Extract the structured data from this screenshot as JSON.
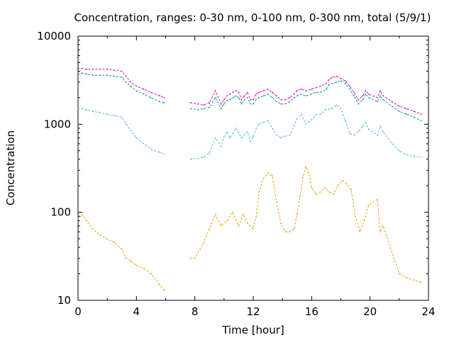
{
  "chart_data": {
    "type": "line",
    "title": "Concentration, ranges: 0-30 nm, 0-100 nm, 0-300 nm, total (5/9/1)",
    "xlabel": "Time [hour]",
    "ylabel": "Concentration",
    "xlim": [
      0,
      24
    ],
    "ylim": [
      10,
      10000
    ],
    "yscale": "log",
    "grid": false,
    "legend": "none",
    "xticks": [
      "0",
      "4",
      "8",
      "12",
      "16",
      "20",
      "24"
    ],
    "yticks": [
      "10",
      "100",
      "1000",
      "10000"
    ],
    "series": [
      {
        "color": "#e69f00",
        "x": [
          0.0,
          0.3,
          0.6,
          1.0,
          1.5,
          2.0,
          2.5,
          3.0,
          3.3,
          3.6,
          4.0,
          4.5,
          5.0,
          5.6,
          5.9,
          7.7,
          8.0,
          8.6,
          9.0,
          9.4,
          9.8,
          10.2,
          10.6,
          11.0,
          11.3,
          11.6,
          11.8,
          12.0,
          12.2,
          12.4,
          12.7,
          13.0,
          13.3,
          13.6,
          13.9,
          14.2,
          14.5,
          14.8,
          15.0,
          15.2,
          15.4,
          15.6,
          15.8,
          16.0,
          16.3,
          16.6,
          16.9,
          17.2,
          17.5,
          17.8,
          18.1,
          18.4,
          18.7,
          19.0,
          19.3,
          19.6,
          19.9,
          20.5,
          20.7,
          20.9,
          22.0,
          22.5,
          23.0,
          23.5
        ],
        "values": [
          85,
          92,
          80,
          65,
          55,
          50,
          45,
          38,
          30,
          28,
          25,
          23,
          20,
          15,
          13,
          30,
          30,
          45,
          65,
          95,
          70,
          80,
          100,
          70,
          95,
          75,
          70,
          65,
          90,
          170,
          240,
          280,
          260,
          130,
          75,
          60,
          60,
          65,
          95,
          150,
          250,
          330,
          280,
          190,
          160,
          170,
          190,
          170,
          160,
          200,
          230,
          210,
          180,
          90,
          60,
          80,
          120,
          140,
          60,
          70,
          20,
          18,
          17,
          16
        ]
      },
      {
        "color": "#56b4e9",
        "x": [
          0.0,
          0.3,
          0.6,
          1.0,
          1.5,
          2.0,
          2.5,
          3.0,
          3.3,
          3.6,
          4.0,
          4.5,
          5.0,
          5.6,
          5.9,
          7.7,
          8.2,
          8.6,
          9.0,
          9.4,
          9.8,
          10.0,
          10.2,
          10.4,
          10.6,
          10.8,
          11.0,
          11.2,
          11.4,
          11.6,
          11.8,
          12.0,
          12.2,
          12.4,
          12.7,
          13.0,
          13.3,
          13.6,
          13.9,
          14.2,
          14.5,
          14.8,
          15.0,
          15.3,
          15.6,
          16.0,
          16.3,
          16.6,
          17.0,
          17.2,
          17.4,
          17.7,
          18.0,
          18.3,
          18.6,
          18.9,
          19.2,
          19.5,
          19.7,
          19.9,
          20.5,
          20.7,
          20.9,
          21.5,
          22.0,
          22.5,
          23.0,
          23.5
        ],
        "values": [
          1500,
          1500,
          1450,
          1400,
          1350,
          1300,
          1250,
          1200,
          1000,
          850,
          700,
          600,
          520,
          480,
          460,
          400,
          410,
          420,
          470,
          700,
          560,
          720,
          820,
          700,
          780,
          900,
          800,
          700,
          760,
          820,
          640,
          720,
          900,
          1000,
          1050,
          1100,
          900,
          760,
          700,
          730,
          750,
          950,
          1150,
          1300,
          1000,
          1120,
          1280,
          1300,
          1480,
          1480,
          1520,
          1650,
          1500,
          1100,
          780,
          750,
          830,
          950,
          1050,
          880,
          750,
          950,
          820,
          600,
          500,
          450,
          430,
          420
        ]
      },
      {
        "color": "#009e73",
        "x": [
          0.0,
          0.3,
          0.6,
          1.0,
          1.5,
          2.0,
          2.5,
          3.0,
          3.3,
          3.6,
          4.0,
          4.5,
          5.0,
          5.6,
          5.9,
          7.7,
          8.2,
          8.6,
          9.0,
          9.4,
          9.8,
          10.0,
          10.2,
          10.4,
          10.6,
          10.8,
          11.0,
          11.2,
          11.4,
          11.6,
          11.8,
          12.0,
          12.2,
          12.4,
          12.7,
          13.0,
          13.3,
          13.6,
          13.9,
          14.2,
          14.5,
          14.8,
          15.0,
          15.3,
          15.6,
          16.0,
          16.3,
          16.6,
          17.0,
          17.2,
          17.4,
          17.7,
          18.0,
          18.3,
          18.6,
          18.9,
          19.2,
          19.5,
          19.7,
          19.9,
          20.5,
          20.7,
          20.9,
          21.5,
          22.0,
          22.5,
          23.0,
          23.5
        ],
        "values": [
          3700,
          3800,
          3700,
          3600,
          3600,
          3600,
          3500,
          3400,
          3000,
          2700,
          2400,
          2200,
          2000,
          1800,
          1750,
          1500,
          1450,
          1500,
          1550,
          2000,
          1500,
          1700,
          1850,
          1900,
          2000,
          2100,
          2000,
          1700,
          1900,
          2000,
          1700,
          1700,
          1900,
          2000,
          2100,
          2200,
          2000,
          1800,
          1700,
          1700,
          1800,
          2000,
          2100,
          2200,
          2100,
          2200,
          2300,
          2300,
          2500,
          2800,
          2900,
          3000,
          3100,
          2900,
          2500,
          2100,
          1700,
          1900,
          2200,
          2000,
          1800,
          2100,
          1900,
          1600,
          1400,
          1300,
          1200,
          1100
        ]
      },
      {
        "color": "#cc00cc",
        "x": [
          0.0,
          0.3,
          0.6,
          1.0,
          1.5,
          2.0,
          2.5,
          3.0,
          3.3,
          3.6,
          4.0,
          4.5,
          5.0,
          5.6,
          5.9,
          7.7,
          8.2,
          8.6,
          9.0,
          9.4,
          9.8,
          10.0,
          10.2,
          10.4,
          10.6,
          10.8,
          11.0,
          11.2,
          11.4,
          11.6,
          11.8,
          12.0,
          12.2,
          12.4,
          12.7,
          13.0,
          13.3,
          13.6,
          13.9,
          14.2,
          14.5,
          14.8,
          15.0,
          15.3,
          15.6,
          16.0,
          16.3,
          16.6,
          17.0,
          17.2,
          17.4,
          17.7,
          18.0,
          18.3,
          18.6,
          18.9,
          19.2,
          19.5,
          19.7,
          19.9,
          20.5,
          20.7,
          20.9,
          21.5,
          22.0,
          22.5,
          23.0,
          23.5
        ],
        "values": [
          4300,
          4300,
          4200,
          4200,
          4200,
          4200,
          4100,
          4000,
          3500,
          3000,
          2700,
          2500,
          2300,
          2100,
          2000,
          1750,
          1700,
          1650,
          1750,
          2400,
          1700,
          1900,
          2100,
          2200,
          2300,
          2400,
          2300,
          1900,
          2100,
          2300,
          1900,
          1900,
          2200,
          2300,
          2400,
          2500,
          2300,
          2100,
          1900,
          1900,
          2000,
          2200,
          2400,
          2500,
          2400,
          2500,
          2600,
          2700,
          2900,
          3200,
          3400,
          3500,
          3300,
          3100,
          2700,
          2300,
          1900,
          2100,
          2400,
          2200,
          2000,
          2400,
          2100,
          1800,
          1600,
          1500,
          1400,
          1300
        ]
      }
    ]
  }
}
